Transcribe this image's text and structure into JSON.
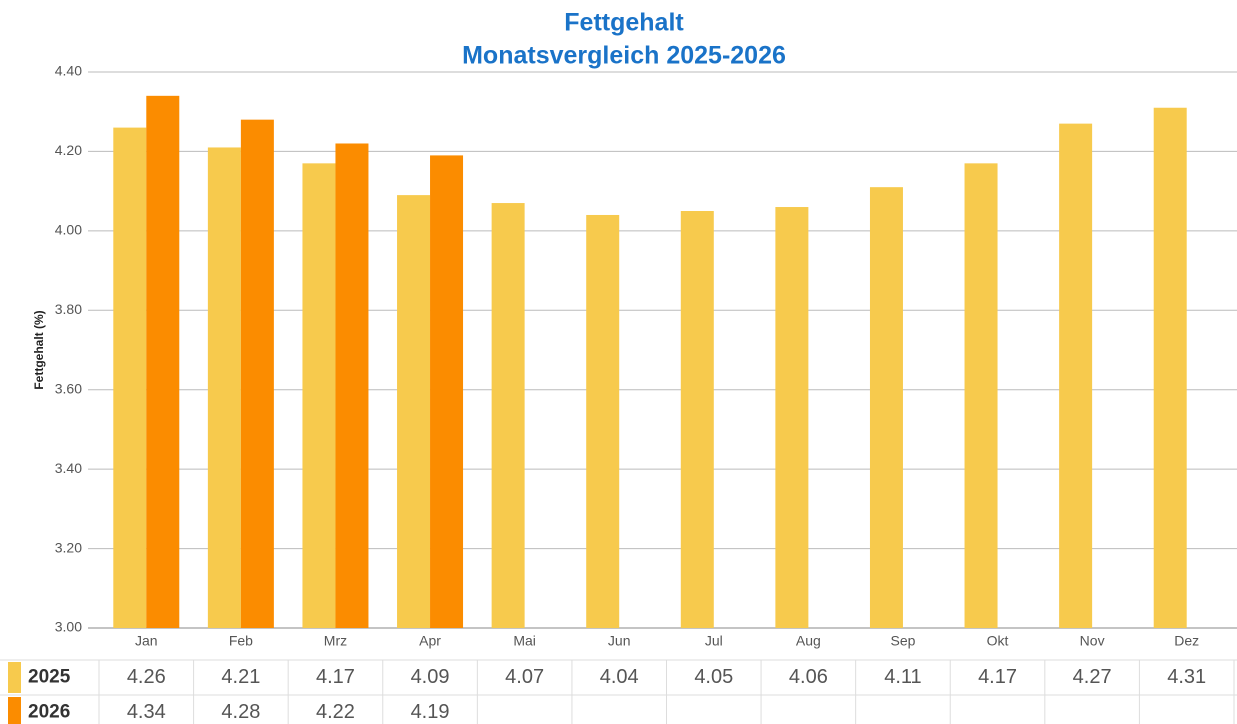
{
  "chart_data": {
    "type": "bar",
    "title": "Fettgehalt",
    "subtitle": "Monatsvergleich 2025-2026",
    "y_label": "Fettgehalt (%)",
    "categories": [
      "Jan",
      "Feb",
      "Mrz",
      "Apr",
      "Mai",
      "Jun",
      "Jul",
      "Aug",
      "Sep",
      "Okt",
      "Nov",
      "Dez"
    ],
    "series": [
      {
        "name": "2025",
        "color": "#f7ca4d",
        "values": [
          4.26,
          4.21,
          4.17,
          4.09,
          4.07,
          4.04,
          4.05,
          4.06,
          4.11,
          4.17,
          4.27,
          4.31
        ]
      },
      {
        "name": "2026",
        "color": "#fb8c00",
        "values": [
          4.34,
          4.28,
          4.22,
          4.19,
          null,
          null,
          null,
          null,
          null,
          null,
          null,
          null
        ]
      }
    ],
    "ylim": [
      3,
      4.4
    ],
    "yticks": [
      {
        "value": 3,
        "label": "3.00"
      },
      {
        "value": 3.2,
        "label": "3.20"
      },
      {
        "value": 3.4,
        "label": "3.40"
      },
      {
        "value": 3.6,
        "label": "3.60"
      },
      {
        "value": 3.8,
        "label": "3.80"
      },
      {
        "value": 4,
        "label": "4.00"
      },
      {
        "value": 4.2,
        "label": "4.20"
      },
      {
        "value": 4.4,
        "label": "4.40"
      }
    ],
    "grid": true,
    "data_table": true
  }
}
